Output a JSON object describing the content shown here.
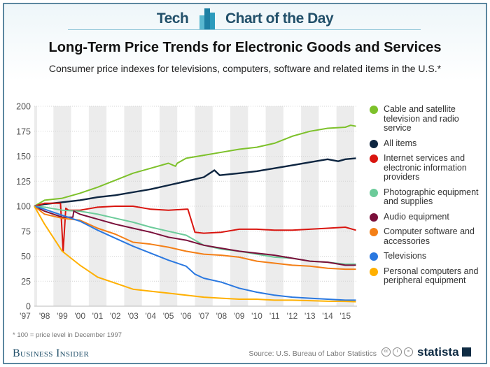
{
  "header": {
    "brand_left": "Tech",
    "brand_right": "Chart of the Day",
    "title": "Long-Term Price Trends for Electronic Goods and Services",
    "subtitle": "Consumer price indexes for televisions, computers, software and related items in the U.S.*"
  },
  "footer": {
    "note": "* 100 = price level in December 1997",
    "publisher": "Business Insider",
    "source": "Source: U.S. Bureau of Labor Statistics",
    "license_icons": [
      "cc",
      "by",
      "nd"
    ],
    "provider": "statista"
  },
  "chart_data": {
    "type": "line",
    "title": "Long-Term Price Trends for Electronic Goods and Services",
    "xlabel": "",
    "ylabel": "",
    "ylim": [
      0,
      200
    ],
    "xlim": [
      1997.42,
      2015.66
    ],
    "yticks": [
      0,
      25,
      50,
      75,
      100,
      125,
      150,
      175,
      200
    ],
    "xtick_labels": [
      "'97",
      "'98",
      "'99",
      "'00",
      "'01",
      "'02",
      "'03",
      "'04",
      "'05",
      "'06",
      "'07",
      "'08",
      "'09",
      "'10",
      "'11",
      "'12",
      "'13",
      "'14",
      "'15"
    ],
    "xtick_values": [
      1997.2,
      1998,
      1999,
      2000,
      2001,
      2002,
      2003,
      2004,
      2005,
      2006,
      2007,
      2008,
      2009,
      2010,
      2011,
      2012,
      2013,
      2014,
      2015
    ],
    "grid": true,
    "alternating_year_shading": true,
    "legend_position": "right",
    "series": [
      {
        "name": "Cable and satellite television and radio service",
        "color": "#7dc12a",
        "x": [
          1997.42,
          1998,
          1999,
          2000,
          2001,
          2002,
          2003,
          2004,
          2005,
          2005.4,
          2005.5,
          2006,
          2007,
          2008,
          2009,
          2010,
          2011,
          2012,
          2013,
          2014,
          2015,
          2015.3,
          2015.6
        ],
        "y": [
          100,
          106,
          108,
          113,
          119,
          126,
          133,
          138,
          143,
          140,
          143,
          148,
          151,
          154,
          157,
          159,
          163,
          170,
          175,
          178,
          179,
          181,
          180
        ]
      },
      {
        "name": "All items",
        "color": "#0d2540",
        "x": [
          1997.42,
          1998,
          1999,
          2000,
          2001,
          2002,
          2003,
          2004,
          2005,
          2006,
          2007,
          2007.6,
          2007.9,
          2009,
          2010,
          2011,
          2012,
          2013,
          2014,
          2014.6,
          2015,
          2015.6
        ],
        "y": [
          100,
          102,
          104,
          106,
          109,
          111,
          114,
          117,
          121,
          125,
          129,
          136,
          131,
          133,
          135,
          138,
          141,
          144,
          147,
          145,
          147,
          148
        ],
        "width": 2.4
      },
      {
        "name": "Internet services and electronic information providers",
        "color": "#d9150f",
        "x": [
          1997.42,
          1998,
          1998.9,
          1999.05,
          1999.2,
          1999.35,
          2000,
          2001,
          2002,
          2003,
          2004,
          2005,
          2006,
          2006.1,
          2006.5,
          2007,
          2008,
          2009,
          2010,
          2011,
          2012,
          2013,
          2014,
          2015,
          2015.6
        ],
        "y": [
          100,
          103,
          103,
          55,
          98,
          96,
          96,
          99,
          100,
          100,
          97,
          96,
          97,
          97,
          74,
          73,
          74,
          77,
          77,
          76,
          76,
          77,
          78,
          79,
          76
        ]
      },
      {
        "name": "Photographic equipment and supplies",
        "color": "#6ccb9a",
        "x": [
          1997.42,
          1998,
          1999,
          2000,
          2001,
          2002,
          2003,
          2004,
          2005,
          2006,
          2007,
          2008,
          2009,
          2010,
          2011,
          2012,
          2013,
          2014,
          2015,
          2015.6
        ],
        "y": [
          100,
          99,
          96,
          95,
          92,
          88,
          84,
          79,
          75,
          71,
          61,
          57,
          55,
          52,
          49,
          48,
          45,
          44,
          42,
          42
        ]
      },
      {
        "name": "Audio equipment",
        "color": "#7a0f3a",
        "x": [
          1997.42,
          1998,
          1999,
          1999.6,
          1999.65,
          2000,
          2001,
          2002,
          2003,
          2004,
          2005,
          2006,
          2007,
          2008,
          2009,
          2010,
          2011,
          2012,
          2013,
          2014,
          2015,
          2015.6
        ],
        "y": [
          100,
          95,
          89,
          89,
          95,
          92,
          87,
          82,
          78,
          74,
          69,
          66,
          61,
          58,
          55,
          53,
          51,
          48,
          45,
          44,
          41,
          41
        ]
      },
      {
        "name": "Computer software and accessories",
        "color": "#f47f16",
        "x": [
          1997.42,
          1998,
          1999,
          2000,
          2001,
          2002,
          2003,
          2004,
          2005,
          2006,
          2007,
          2008,
          2009,
          2010,
          2011,
          2012,
          2013,
          2014,
          2015,
          2015.6
        ],
        "y": [
          100,
          92,
          88,
          86,
          78,
          72,
          64,
          62,
          59,
          55,
          52,
          51,
          49,
          45,
          43,
          41,
          40,
          38,
          37,
          37
        ]
      },
      {
        "name": "Televisions",
        "color": "#2a78e0",
        "x": [
          1997.42,
          1998,
          1999,
          2000,
          2001,
          2002,
          2003,
          2004,
          2005,
          2006,
          2006.5,
          2007,
          2008,
          2009,
          2010,
          2011,
          2012,
          2013,
          2014,
          2015,
          2015.6
        ],
        "y": [
          100,
          97,
          91,
          85,
          76,
          68,
          60,
          53,
          46,
          40,
          32,
          28,
          24,
          18,
          14,
          11,
          9,
          8,
          7,
          6,
          6
        ]
      },
      {
        "name": "Personal computers and peripheral equipment",
        "color": "#ffb000",
        "x": [
          1997.42,
          1998,
          1999,
          2000,
          2001,
          2002,
          2003,
          2004,
          2005,
          2006,
          2007,
          2008,
          2009,
          2010,
          2011,
          2012,
          2013,
          2014,
          2015,
          2015.6
        ],
        "y": [
          100,
          82,
          55,
          41,
          29,
          23,
          17,
          15,
          13,
          11,
          9,
          8,
          7,
          7,
          6,
          6,
          5.5,
          5,
          4.8,
          4.5
        ]
      }
    ]
  }
}
